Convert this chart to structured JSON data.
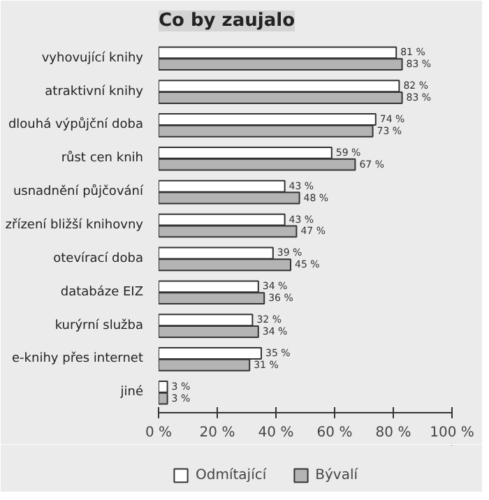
{
  "chart_data": {
    "type": "bar",
    "orientation": "horizontal",
    "title": "Co by zaujalo",
    "categories": [
      "vyhovující knihy",
      "atraktivní knihy",
      "dlouhá výpůjční doba",
      "růst cen knih",
      "usnadnění půjčování",
      "zřízení bližší knihovny",
      "otevírací doba",
      "databáze EIZ",
      "kurýrní služba",
      "e-knihy přes internet",
      "jiné"
    ],
    "series": [
      {
        "name": "Odmítající",
        "color": "#ffffff",
        "values": [
          81,
          82,
          74,
          59,
          43,
          43,
          39,
          34,
          32,
          35,
          3
        ],
        "value_labels": [
          "81 %",
          "82 %",
          "74 %",
          "59 %",
          "43 %",
          "43 %",
          "39 %",
          "34 %",
          "32 %",
          "35 %",
          "3 %"
        ]
      },
      {
        "name": "Bývalí",
        "color": "#b4b4b4",
        "values": [
          83,
          83,
          73,
          67,
          48,
          47,
          45,
          36,
          34,
          31,
          3
        ],
        "value_labels": [
          "83 %",
          "83 %",
          "73 %",
          "67 %",
          "48 %",
          "47 %",
          "45 %",
          "36 %",
          "34 %",
          "31 %",
          "3 %"
        ]
      }
    ],
    "xlim": [
      0,
      100
    ],
    "xticks": [
      {
        "value": 0,
        "label": "0 %"
      },
      {
        "value": 20,
        "label": "20 %"
      },
      {
        "value": 40,
        "label": "40 %"
      },
      {
        "value": 60,
        "label": "60 %"
      },
      {
        "value": 80,
        "label": "80 %"
      },
      {
        "value": 100,
        "label": "100 %"
      }
    ],
    "grid": false,
    "legend": "bottom"
  }
}
